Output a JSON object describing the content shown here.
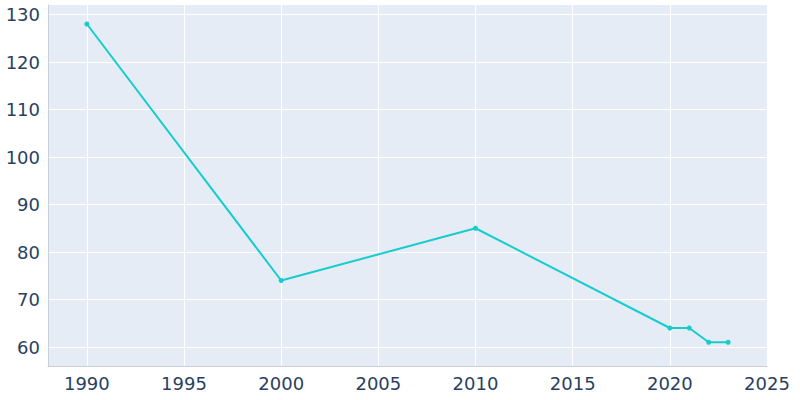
{
  "chart_data": {
    "type": "line",
    "x": [
      1990,
      2000,
      2010,
      2020,
      2021,
      2022,
      2023
    ],
    "values": [
      128,
      74,
      85,
      64,
      64,
      61,
      61
    ],
    "color": "#17cccc",
    "marker": "circle",
    "xlim": [
      1988,
      2025
    ],
    "xticks": [
      1990,
      1995,
      2000,
      2005,
      2010,
      2015,
      2020,
      2025
    ],
    "ylim": [
      56,
      132
    ],
    "yticks": [
      60,
      70,
      80,
      90,
      100,
      110,
      120,
      130
    ],
    "grid": true
  }
}
